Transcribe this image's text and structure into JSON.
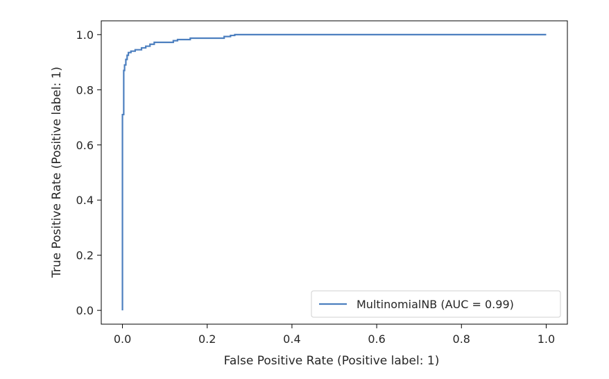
{
  "chart_data": {
    "type": "line",
    "xlabel": "False Positive Rate (Positive label: 1)",
    "ylabel": "True Positive Rate (Positive label: 1)",
    "xlim": [
      -0.05,
      1.05
    ],
    "ylim": [
      -0.05,
      1.05
    ],
    "xticks": [
      "0.0",
      "0.2",
      "0.4",
      "0.6",
      "0.8",
      "1.0"
    ],
    "yticks": [
      "0.0",
      "0.2",
      "0.4",
      "0.6",
      "0.8",
      "1.0"
    ],
    "grid": false,
    "legend_position": "lower-right",
    "series": [
      {
        "name": "MultinomialNB (AUC = 0.99)",
        "color": "#4c7fbf",
        "x": [
          0.0,
          0.0,
          0.003,
          0.003,
          0.005,
          0.005,
          0.008,
          0.008,
          0.011,
          0.011,
          0.014,
          0.014,
          0.02,
          0.02,
          0.03,
          0.03,
          0.045,
          0.045,
          0.055,
          0.055,
          0.065,
          0.065,
          0.075,
          0.075,
          0.12,
          0.12,
          0.13,
          0.13,
          0.16,
          0.16,
          0.24,
          0.24,
          0.255,
          0.255,
          0.265,
          0.265,
          1.0
        ],
        "y": [
          0.0,
          0.71,
          0.71,
          0.87,
          0.87,
          0.89,
          0.89,
          0.91,
          0.91,
          0.925,
          0.925,
          0.935,
          0.935,
          0.94,
          0.94,
          0.945,
          0.945,
          0.952,
          0.952,
          0.958,
          0.958,
          0.965,
          0.965,
          0.972,
          0.972,
          0.978,
          0.978,
          0.982,
          0.982,
          0.987,
          0.987,
          0.993,
          0.993,
          0.997,
          0.997,
          1.0,
          1.0
        ]
      }
    ]
  }
}
